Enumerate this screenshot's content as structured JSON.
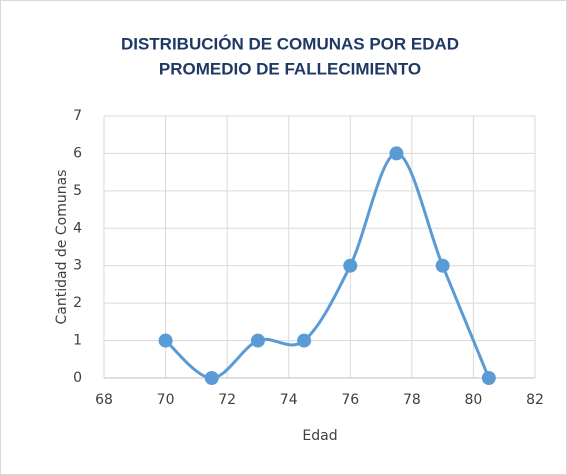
{
  "chart_data": {
    "type": "scatter",
    "title": [
      "DISTRIBUCIÓN DE COMUNAS POR EDAD",
      "PROMEDIO DE FALLECIMIENTO"
    ],
    "x_label": "Edad",
    "y_label": "Cantidad de Comunas",
    "x": [
      70,
      71.5,
      73,
      74.5,
      76,
      77.5,
      79,
      80.5
    ],
    "values": [
      1,
      0,
      1,
      1,
      3,
      6,
      3,
      0
    ],
    "color": "#5b9bd5",
    "smooth": true,
    "grid": true,
    "xlim": [
      68,
      82
    ],
    "xticks": [
      68,
      70,
      72,
      74,
      76,
      78,
      80,
      82
    ],
    "ylim": [
      0,
      7
    ],
    "yticks": [
      0,
      1,
      2,
      3,
      4,
      5,
      6,
      7
    ]
  }
}
